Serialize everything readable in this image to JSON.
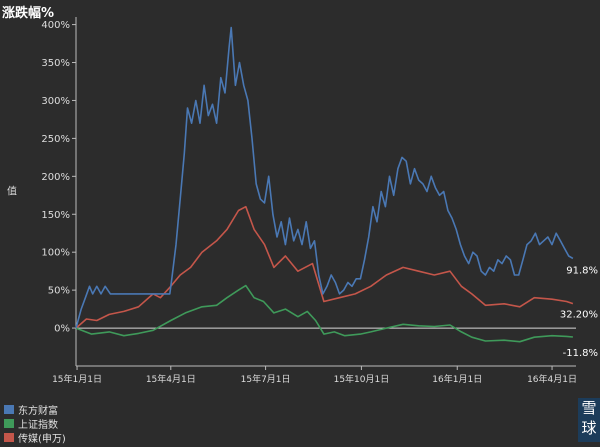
{
  "title": "涨跌幅%",
  "ylabel": "值",
  "watermark": [
    "雪",
    "球"
  ],
  "chart_data": {
    "type": "line",
    "title": "涨跌幅%",
    "xlabel": "",
    "ylabel": "值",
    "ylim": [
      -50,
      410
    ],
    "grid": false,
    "legend_position": "bottom-left",
    "yticks": [
      0,
      50,
      100,
      150,
      200,
      250,
      300,
      350,
      400
    ],
    "ytick_labels": [
      "0%",
      "50%",
      "100%",
      "150%",
      "200%",
      "250%",
      "300%",
      "350%",
      "400%"
    ],
    "xticks": [
      "2015-01-01",
      "2015-04-01",
      "2015-07-01",
      "2015-10-01",
      "2016-01-01",
      "2016-04-01"
    ],
    "xtick_labels": [
      "15年1月1日",
      "15年4月1日",
      "15年7月1日",
      "15年10月1日",
      "16年1月1日",
      "16年4月1日"
    ],
    "series": [
      {
        "name": "东方财富",
        "color": "#4a78b4",
        "end_label": "91.8%",
        "points": [
          [
            "2014-12-31",
            0
          ],
          [
            "2015-01-05",
            25
          ],
          [
            "2015-01-09",
            40
          ],
          [
            "2015-01-13",
            55
          ],
          [
            "2015-01-16",
            45
          ],
          [
            "2015-01-20",
            55
          ],
          [
            "2015-01-24",
            45
          ],
          [
            "2015-01-28",
            55
          ],
          [
            "2015-02-02",
            45
          ],
          [
            "2015-02-20",
            45
          ],
          [
            "2015-03-15",
            45
          ],
          [
            "2015-03-31",
            45
          ],
          [
            "2015-04-02",
            65
          ],
          [
            "2015-04-06",
            110
          ],
          [
            "2015-04-10",
            170
          ],
          [
            "2015-04-14",
            230
          ],
          [
            "2015-04-17",
            290
          ],
          [
            "2015-04-21",
            270
          ],
          [
            "2015-04-25",
            300
          ],
          [
            "2015-04-29",
            270
          ],
          [
            "2015-05-03",
            320
          ],
          [
            "2015-05-07",
            280
          ],
          [
            "2015-05-11",
            295
          ],
          [
            "2015-05-15",
            270
          ],
          [
            "2015-05-19",
            330
          ],
          [
            "2015-05-23",
            310
          ],
          [
            "2015-05-27",
            370
          ],
          [
            "2015-05-29",
            396
          ],
          [
            "2015-06-02",
            320
          ],
          [
            "2015-06-06",
            350
          ],
          [
            "2015-06-10",
            320
          ],
          [
            "2015-06-14",
            300
          ],
          [
            "2015-06-18",
            250
          ],
          [
            "2015-06-22",
            190
          ],
          [
            "2015-06-26",
            170
          ],
          [
            "2015-06-30",
            165
          ],
          [
            "2015-07-04",
            200
          ],
          [
            "2015-07-08",
            150
          ],
          [
            "2015-07-12",
            120
          ],
          [
            "2015-07-16",
            140
          ],
          [
            "2015-07-20",
            110
          ],
          [
            "2015-07-24",
            145
          ],
          [
            "2015-07-28",
            115
          ],
          [
            "2015-08-01",
            130
          ],
          [
            "2015-08-05",
            110
          ],
          [
            "2015-08-09",
            140
          ],
          [
            "2015-08-13",
            105
          ],
          [
            "2015-08-17",
            115
          ],
          [
            "2015-08-21",
            70
          ],
          [
            "2015-08-25",
            45
          ],
          [
            "2015-08-29",
            55
          ],
          [
            "2015-09-02",
            70
          ],
          [
            "2015-09-06",
            60
          ],
          [
            "2015-09-10",
            45
          ],
          [
            "2015-09-14",
            50
          ],
          [
            "2015-09-18",
            60
          ],
          [
            "2015-09-22",
            55
          ],
          [
            "2015-09-26",
            65
          ],
          [
            "2015-09-30",
            65
          ],
          [
            "2015-10-04",
            90
          ],
          [
            "2015-10-08",
            120
          ],
          [
            "2015-10-12",
            160
          ],
          [
            "2015-10-16",
            140
          ],
          [
            "2015-10-20",
            180
          ],
          [
            "2015-10-24",
            160
          ],
          [
            "2015-10-28",
            200
          ],
          [
            "2015-11-01",
            175
          ],
          [
            "2015-11-05",
            210
          ],
          [
            "2015-11-09",
            225
          ],
          [
            "2015-11-13",
            220
          ],
          [
            "2015-11-17",
            190
          ],
          [
            "2015-11-21",
            210
          ],
          [
            "2015-11-25",
            195
          ],
          [
            "2015-11-29",
            190
          ],
          [
            "2015-12-03",
            180
          ],
          [
            "2015-12-07",
            200
          ],
          [
            "2015-12-11",
            185
          ],
          [
            "2015-12-15",
            175
          ],
          [
            "2015-12-19",
            180
          ],
          [
            "2015-12-23",
            155
          ],
          [
            "2015-12-27",
            145
          ],
          [
            "2015-12-31",
            130
          ],
          [
            "2016-01-04",
            110
          ],
          [
            "2016-01-08",
            95
          ],
          [
            "2016-01-12",
            85
          ],
          [
            "2016-01-16",
            100
          ],
          [
            "2016-01-20",
            95
          ],
          [
            "2016-01-24",
            75
          ],
          [
            "2016-01-28",
            70
          ],
          [
            "2016-02-01",
            80
          ],
          [
            "2016-02-05",
            75
          ],
          [
            "2016-02-09",
            90
          ],
          [
            "2016-02-13",
            85
          ],
          [
            "2016-02-17",
            95
          ],
          [
            "2016-02-21",
            90
          ],
          [
            "2016-02-25",
            70
          ],
          [
            "2016-02-29",
            70
          ],
          [
            "2016-03-04",
            90
          ],
          [
            "2016-03-08",
            110
          ],
          [
            "2016-03-12",
            115
          ],
          [
            "2016-03-16",
            125
          ],
          [
            "2016-03-20",
            110
          ],
          [
            "2016-03-24",
            115
          ],
          [
            "2016-03-28",
            120
          ],
          [
            "2016-04-01",
            110
          ],
          [
            "2016-04-05",
            125
          ],
          [
            "2016-04-09",
            115
          ],
          [
            "2016-04-13",
            105
          ],
          [
            "2016-04-17",
            95
          ],
          [
            "2016-04-21",
            91.8
          ]
        ]
      },
      {
        "name": "上证指数",
        "color": "#3f9a5a",
        "end_label": "-11.8%",
        "points": [
          [
            "2014-12-31",
            0
          ],
          [
            "2015-01-15",
            -8
          ],
          [
            "2015-02-01",
            -5
          ],
          [
            "2015-02-15",
            -10
          ],
          [
            "2015-03-01",
            -7
          ],
          [
            "2015-03-15",
            -3
          ],
          [
            "2015-04-01",
            10
          ],
          [
            "2015-04-15",
            20
          ],
          [
            "2015-05-01",
            28
          ],
          [
            "2015-05-15",
            30
          ],
          [
            "2015-05-25",
            40
          ],
          [
            "2015-06-05",
            50
          ],
          [
            "2015-06-12",
            56
          ],
          [
            "2015-06-20",
            40
          ],
          [
            "2015-06-29",
            35
          ],
          [
            "2015-07-09",
            20
          ],
          [
            "2015-07-20",
            25
          ],
          [
            "2015-08-01",
            15
          ],
          [
            "2015-08-10",
            22
          ],
          [
            "2015-08-18",
            10
          ],
          [
            "2015-08-26",
            -8
          ],
          [
            "2015-09-05",
            -5
          ],
          [
            "2015-09-15",
            -10
          ],
          [
            "2015-09-30",
            -8
          ],
          [
            "2015-10-10",
            -5
          ],
          [
            "2015-10-25",
            0
          ],
          [
            "2015-11-10",
            5
          ],
          [
            "2015-11-25",
            3
          ],
          [
            "2015-12-10",
            2
          ],
          [
            "2015-12-25",
            4
          ],
          [
            "2016-01-05",
            -5
          ],
          [
            "2016-01-15",
            -12
          ],
          [
            "2016-01-28",
            -17
          ],
          [
            "2016-02-15",
            -16
          ],
          [
            "2016-03-01",
            -18
          ],
          [
            "2016-03-15",
            -12
          ],
          [
            "2016-04-01",
            -10
          ],
          [
            "2016-04-15",
            -11
          ],
          [
            "2016-04-21",
            -11.8
          ]
        ]
      },
      {
        "name": "传媒(申万)",
        "color": "#c4564a",
        "end_label": "32.20%",
        "points": [
          [
            "2014-12-31",
            0
          ],
          [
            "2015-01-10",
            12
          ],
          [
            "2015-01-20",
            10
          ],
          [
            "2015-02-01",
            18
          ],
          [
            "2015-02-15",
            22
          ],
          [
            "2015-03-01",
            28
          ],
          [
            "2015-03-15",
            45
          ],
          [
            "2015-03-22",
            40
          ],
          [
            "2015-04-01",
            55
          ],
          [
            "2015-04-10",
            70
          ],
          [
            "2015-04-20",
            80
          ],
          [
            "2015-05-01",
            100
          ],
          [
            "2015-05-15",
            115
          ],
          [
            "2015-05-25",
            130
          ],
          [
            "2015-06-05",
            155
          ],
          [
            "2015-06-12",
            160
          ],
          [
            "2015-06-20",
            130
          ],
          [
            "2015-06-30",
            110
          ],
          [
            "2015-07-09",
            80
          ],
          [
            "2015-07-20",
            95
          ],
          [
            "2015-08-01",
            75
          ],
          [
            "2015-08-15",
            85
          ],
          [
            "2015-08-26",
            35
          ],
          [
            "2015-09-10",
            40
          ],
          [
            "2015-09-25",
            45
          ],
          [
            "2015-10-10",
            55
          ],
          [
            "2015-10-25",
            70
          ],
          [
            "2015-11-10",
            80
          ],
          [
            "2015-11-25",
            75
          ],
          [
            "2015-12-10",
            70
          ],
          [
            "2015-12-25",
            75
          ],
          [
            "2016-01-05",
            55
          ],
          [
            "2016-01-15",
            45
          ],
          [
            "2016-01-28",
            30
          ],
          [
            "2016-02-15",
            32
          ],
          [
            "2016-03-01",
            28
          ],
          [
            "2016-03-15",
            40
          ],
          [
            "2016-04-01",
            38
          ],
          [
            "2016-04-15",
            35
          ],
          [
            "2016-04-21",
            32.2
          ]
        ]
      }
    ]
  }
}
